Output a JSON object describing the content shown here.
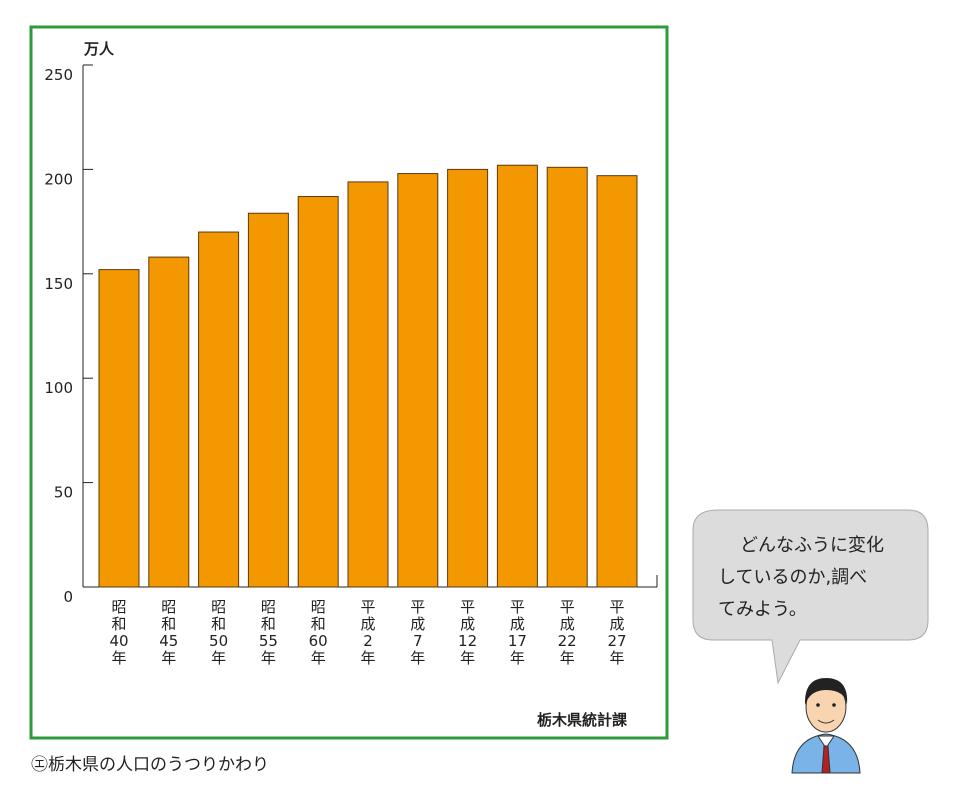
{
  "chart_data": {
    "type": "bar",
    "y_label": "万人",
    "categories": [
      [
        "昭",
        "和",
        "40",
        "年"
      ],
      [
        "昭",
        "和",
        "45",
        "年"
      ],
      [
        "昭",
        "和",
        "50",
        "年"
      ],
      [
        "昭",
        "和",
        "55",
        "年"
      ],
      [
        "昭",
        "和",
        "60",
        "年"
      ],
      [
        "平",
        "成",
        "2",
        "年"
      ],
      [
        "平",
        "成",
        "7",
        "年"
      ],
      [
        "平",
        "成",
        "12",
        "年"
      ],
      [
        "平",
        "成",
        "17",
        "年"
      ],
      [
        "平",
        "成",
        "22",
        "年"
      ],
      [
        "平",
        "成",
        "27",
        "年"
      ]
    ],
    "values": [
      152,
      158,
      170,
      179,
      187,
      194,
      198,
      200,
      202,
      201,
      197
    ],
    "color": "#f39800",
    "ylim": [
      0,
      250
    ],
    "yticks": [
      0,
      50,
      100,
      150,
      200,
      250
    ],
    "source": "栃木県統計課"
  },
  "caption": "㋓栃木県の人口のうつりかわり",
  "speech_bubble": [
    "どんなふうに変化",
    "しているのか,調べ",
    "てみよう。"
  ]
}
